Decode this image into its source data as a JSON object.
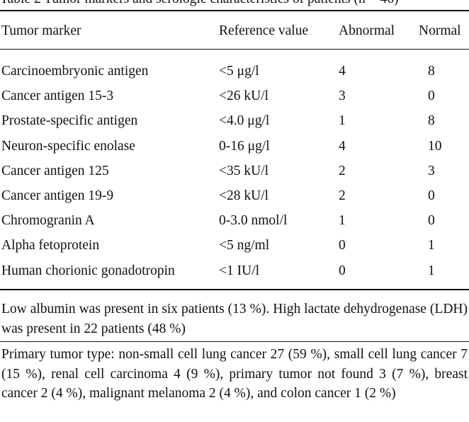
{
  "caption": "Table 2 Tumor markers and serologic characteristics of patients (n = 46)",
  "table": {
    "headers": {
      "marker": "Tumor marker",
      "reference": "Reference value",
      "abnormal": "Abnormal",
      "normal": "Normal"
    },
    "rows": [
      {
        "marker": "Carcinoembryonic antigen",
        "reference": "<5 μg/l",
        "abnormal": "4",
        "normal": "8"
      },
      {
        "marker": "Cancer antigen 15-3",
        "reference": "<26 kU/l",
        "abnormal": "3",
        "normal": "0"
      },
      {
        "marker": "Prostate-specific antigen",
        "reference": "<4.0 μg/l",
        "abnormal": "1",
        "normal": "8"
      },
      {
        "marker": "Neuron-specific enolase",
        "reference": "0-16 μg/l",
        "abnormal": "4",
        "normal": "10"
      },
      {
        "marker": "Cancer antigen 125",
        "reference": "<35 kU/l",
        "abnormal": "2",
        "normal": "3"
      },
      {
        "marker": "Cancer antigen 19-9",
        "reference": "<28 kU/l",
        "abnormal": "2",
        "normal": "0"
      },
      {
        "marker": "Chromogranin A",
        "reference": "0-3.0 nmol/l",
        "abnormal": "1",
        "normal": "0"
      },
      {
        "marker": "Alpha fetoprotein",
        "reference": "<5 ng/ml",
        "abnormal": "0",
        "normal": "1"
      },
      {
        "marker": "Human chorionic gonadotropin",
        "reference": "<1 IU/l",
        "abnormal": "0",
        "normal": "1"
      }
    ]
  },
  "notes": [
    "Low albumin was present in six patients (13 %). High lactate dehydrogenase (LDH) was present in 22 patients (48 %)",
    "Primary tumor type: non-small cell lung cancer 27 (59 %), small cell lung cancer 7 (15 %), renal cell carcinoma 4 (9 %), primary tumor not found 3 (7 %), breast cancer 2 (4 %), malignant melanoma 2 (4 %), and colon cancer 1 (2 %)"
  ]
}
